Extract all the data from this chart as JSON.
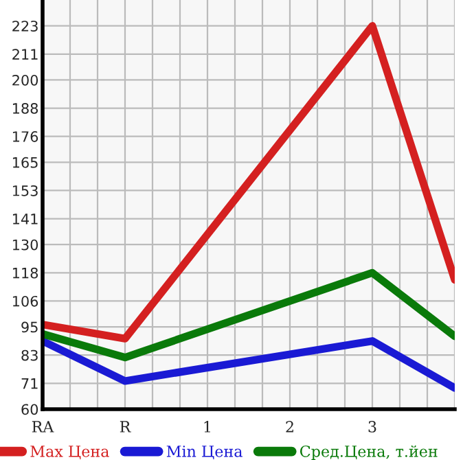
{
  "chart_data": {
    "type": "line",
    "categories": [
      "RA",
      "R",
      "1",
      "2",
      "3",
      null
    ],
    "series": [
      {
        "name": "Max Цена",
        "color": "#d42020",
        "values": [
          96,
          90,
          null,
          null,
          223,
          115
        ]
      },
      {
        "name": "Min Цена",
        "color": "#1a1ad4",
        "values": [
          89,
          72,
          null,
          null,
          89,
          69
        ]
      },
      {
        "name": "Сред.Цена, т.йен",
        "color": "#0a7a0a",
        "values": [
          92,
          82,
          null,
          null,
          118,
          91
        ]
      }
    ],
    "ylim": [
      60,
      234
    ],
    "yticks": [
      60,
      71,
      83,
      95,
      106,
      118,
      130,
      141,
      153,
      165,
      176,
      188,
      200,
      211,
      223
    ],
    "grid": true,
    "legend": "bottom",
    "marker": "none",
    "line_style": "solid"
  }
}
